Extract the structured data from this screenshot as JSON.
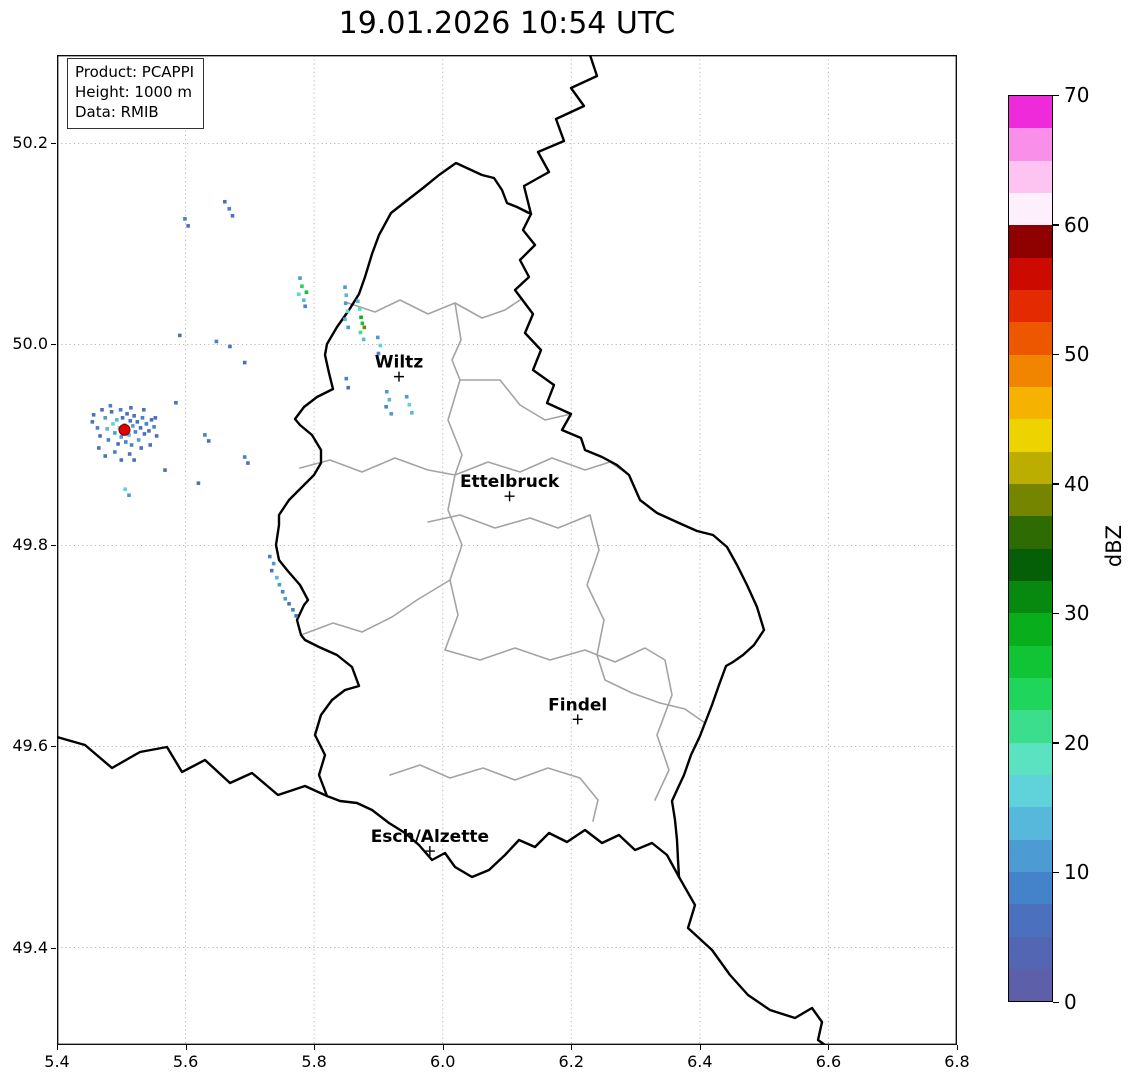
{
  "title": "19.01.2026 10:54 UTC",
  "info_box": {
    "lines": [
      "Product: PCAPPI",
      "Height: 1000 m",
      "Data: RMIB"
    ]
  },
  "chart_data": {
    "type": "heatmap",
    "x_range": [
      5.4,
      6.8
    ],
    "y_range": [
      49.303,
      50.288
    ],
    "x_ticks": [
      5.4,
      5.6,
      5.8,
      6.0,
      6.2,
      6.4,
      6.6,
      6.8
    ],
    "y_ticks": [
      49.4,
      49.6,
      49.8,
      50.0,
      50.2
    ],
    "grid": "dotted",
    "colorbar": {
      "label": "dBZ",
      "range": [
        0,
        70
      ],
      "ticks": [
        0,
        10,
        20,
        30,
        40,
        50,
        60,
        70
      ],
      "colors": [
        "#5D5FA9",
        "#5366B3",
        "#4A70BE",
        "#4482C9",
        "#4C9BD3",
        "#57B8DC",
        "#60D2DA",
        "#5BE2C0",
        "#3BDE8D",
        "#20D55C",
        "#10C436",
        "#08AE1B",
        "#06890E",
        "#045F07",
        "#2F6B03",
        "#768500",
        "#BBAE00",
        "#EDD300",
        "#F5B200",
        "#F28500",
        "#EC5700",
        "#E32A00",
        "#CC0A00",
        "#8F0000",
        "#FDEFFC",
        "#FDC4F2",
        "#FA8FE9",
        "#EE2ADB"
      ]
    },
    "cities": [
      {
        "name": "Wiltz",
        "lon": 5.932,
        "lat": 49.968
      },
      {
        "name": "Ettelbruck",
        "lon": 6.104,
        "lat": 49.849
      },
      {
        "name": "Findel",
        "lon": 6.21,
        "lat": 49.627
      },
      {
        "name": "Esch/Alzette",
        "lon": 5.98,
        "lat": 49.496
      }
    ],
    "radar_site": {
      "lon": 5.505,
      "lat": 49.915,
      "color": "#e50000"
    },
    "echoes": [
      [
        5.455,
        49.923,
        5
      ],
      [
        5.463,
        49.917,
        7.5
      ],
      [
        5.467,
        49.909,
        5
      ],
      [
        5.475,
        49.927,
        10
      ],
      [
        5.478,
        49.916,
        12.5
      ],
      [
        5.48,
        49.905,
        7.5
      ],
      [
        5.485,
        49.933,
        5
      ],
      [
        5.487,
        49.921,
        15
      ],
      [
        5.49,
        49.912,
        10
      ],
      [
        5.493,
        49.925,
        12.5
      ],
      [
        5.495,
        49.901,
        5
      ],
      [
        5.497,
        49.917,
        17.5
      ],
      [
        5.499,
        49.935,
        7.5
      ],
      [
        5.5,
        49.908,
        10
      ],
      [
        5.502,
        49.927,
        5
      ],
      [
        5.503,
        49.914,
        12.5
      ],
      [
        5.505,
        49.92,
        15
      ],
      [
        5.507,
        49.903,
        7.5
      ],
      [
        5.509,
        49.931,
        5
      ],
      [
        5.51,
        49.916,
        10
      ],
      [
        5.512,
        49.91,
        12.5
      ],
      [
        5.514,
        49.924,
        5
      ],
      [
        5.516,
        49.9,
        7.5
      ],
      [
        5.518,
        49.919,
        10
      ],
      [
        5.52,
        49.929,
        5
      ],
      [
        5.522,
        49.913,
        7.5
      ],
      [
        5.525,
        49.923,
        5
      ],
      [
        5.527,
        49.905,
        10
      ],
      [
        5.53,
        49.917,
        5
      ],
      [
        5.533,
        49.927,
        7.5
      ],
      [
        5.536,
        49.911,
        5
      ],
      [
        5.539,
        49.921,
        7.5
      ],
      [
        5.543,
        49.914,
        5
      ],
      [
        5.547,
        49.925,
        5
      ],
      [
        5.551,
        49.918,
        7.5
      ],
      [
        5.555,
        49.909,
        5
      ],
      [
        5.47,
        49.935,
        5
      ],
      [
        5.483,
        49.939,
        7.5
      ],
      [
        5.515,
        49.937,
        5
      ],
      [
        5.535,
        49.935,
        5
      ],
      [
        5.465,
        49.897,
        5
      ],
      [
        5.49,
        49.893,
        7.5
      ],
      [
        5.513,
        49.891,
        5
      ],
      [
        5.531,
        49.897,
        5
      ],
      [
        5.5,
        49.885,
        5
      ],
      [
        5.52,
        49.885,
        5
      ],
      [
        5.475,
        49.889,
        5
      ],
      [
        5.545,
        49.9,
        5
      ],
      [
        5.457,
        49.93,
        5
      ],
      [
        5.553,
        49.927,
        5
      ],
      [
        5.599,
        50.125,
        7.5
      ],
      [
        5.604,
        50.118,
        5
      ],
      [
        5.661,
        50.142,
        5
      ],
      [
        5.668,
        50.135,
        7.5
      ],
      [
        5.673,
        50.128,
        5
      ],
      [
        5.591,
        50.009,
        5
      ],
      [
        5.648,
        50.003,
        7.5
      ],
      [
        5.669,
        49.998,
        5
      ],
      [
        5.692,
        49.982,
        5
      ],
      [
        5.63,
        49.91,
        7.5
      ],
      [
        5.636,
        49.904,
        5
      ],
      [
        5.692,
        49.888,
        7.5
      ],
      [
        5.697,
        49.882,
        5
      ],
      [
        5.506,
        49.856,
        15
      ],
      [
        5.512,
        49.85,
        10
      ],
      [
        5.778,
        50.066,
        10
      ],
      [
        5.781,
        50.058,
        22.5
      ],
      [
        5.776,
        50.05,
        15
      ],
      [
        5.784,
        50.044,
        12.5
      ],
      [
        5.788,
        50.052,
        25
      ],
      [
        5.786,
        50.038,
        7.5
      ],
      [
        5.848,
        50.057,
        10
      ],
      [
        5.85,
        50.049,
        12.5
      ],
      [
        5.849,
        50.041,
        10
      ],
      [
        5.852,
        50.033,
        15
      ],
      [
        5.848,
        50.025,
        12.5
      ],
      [
        5.853,
        50.017,
        10
      ],
      [
        5.868,
        50.043,
        12.5
      ],
      [
        5.871,
        50.035,
        17.5
      ],
      [
        5.873,
        50.027,
        27.5
      ],
      [
        5.875,
        50.021,
        25
      ],
      [
        5.878,
        50.017,
        37.5
      ],
      [
        5.872,
        50.012,
        20
      ],
      [
        5.877,
        50.005,
        12.5
      ],
      [
        5.899,
        50.007,
        10
      ],
      [
        5.903,
        49.999,
        15
      ],
      [
        5.9,
        49.991,
        7.5
      ],
      [
        5.913,
        49.953,
        10
      ],
      [
        5.917,
        49.945,
        12.5
      ],
      [
        5.912,
        49.938,
        7.5
      ],
      [
        5.92,
        49.931,
        10
      ],
      [
        5.948,
        49.94,
        15
      ],
      [
        5.944,
        49.948,
        10
      ],
      [
        5.952,
        49.932,
        12.5
      ],
      [
        5.731,
        49.789,
        7.5
      ],
      [
        5.737,
        49.782,
        10
      ],
      [
        5.734,
        49.775,
        5
      ],
      [
        5.742,
        49.768,
        12.5
      ],
      [
        5.746,
        49.761,
        10
      ],
      [
        5.751,
        49.754,
        7.5
      ],
      [
        5.755,
        49.747,
        10
      ],
      [
        5.761,
        49.742,
        5
      ],
      [
        5.767,
        49.736,
        7.5
      ],
      [
        5.772,
        49.73,
        5
      ],
      [
        5.585,
        49.942,
        5
      ],
      [
        5.568,
        49.875,
        5
      ],
      [
        5.62,
        49.862,
        5
      ],
      [
        5.85,
        49.966,
        7.5
      ],
      [
        5.853,
        49.957,
        5
      ]
    ]
  }
}
